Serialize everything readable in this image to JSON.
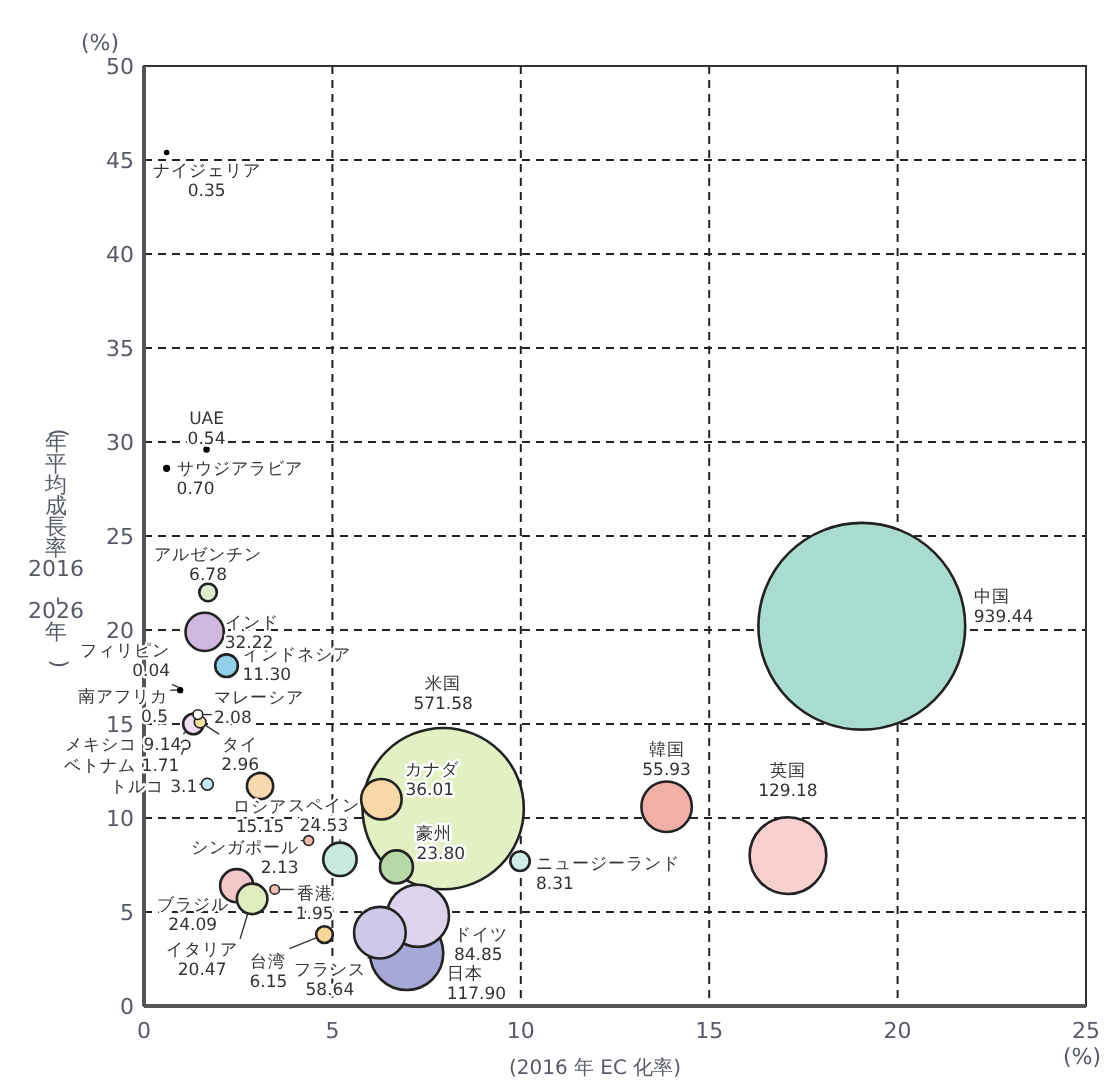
{
  "chart_data": {
    "type": "bubble",
    "xlabel": "(2016 年 EC 化率)",
    "ylabel": "(年平均成長率2016-2026年)",
    "annotations": [
      "(%)",
      "(%)"
    ],
    "xlim": [
      0,
      25
    ],
    "ylim": [
      0,
      50
    ],
    "xticks": [
      0,
      5,
      10,
      15,
      20,
      25
    ],
    "yticks": [
      0,
      5,
      10,
      15,
      20,
      25,
      30,
      35,
      40,
      45,
      50
    ],
    "grid": true,
    "series": [
      {
        "name": "中国",
        "color": "#a8dccf",
        "x": [
          19.05
        ],
        "values": [
          20.2
        ],
        "sizes": [
          939.44
        ],
        "value_labels": [
          "939.44"
        ]
      },
      {
        "name": "韓国",
        "color": "#f0b0a8",
        "x": [
          13.87
        ],
        "values": [
          10.6
        ],
        "sizes": [
          55.93
        ],
        "value_labels": [
          "55.93"
        ]
      },
      {
        "name": "英国",
        "color": "#f8d0d0",
        "x": [
          17.09
        ],
        "values": [
          8.0
        ],
        "sizes": [
          129.18
        ],
        "value_labels": [
          "129.18"
        ]
      },
      {
        "name": "米国",
        "color": "#e2f0c4",
        "x": [
          7.94
        ],
        "values": [
          10.5
        ],
        "sizes": [
          571.58
        ],
        "value_labels": [
          "571.58"
        ]
      },
      {
        "name": "カナダ",
        "color": "#f8d8a8",
        "x": [
          6.3
        ],
        "values": [
          11.0
        ],
        "sizes": [
          36.01
        ],
        "value_labels": [
          "36.01"
        ]
      },
      {
        "name": "スペイン",
        "color": "#c8e8e0",
        "x": [
          5.2
        ],
        "values": [
          7.8
        ],
        "sizes": [
          24.53
        ],
        "value_labels": [
          "24.53"
        ]
      },
      {
        "name": "豪州",
        "color": "#b8d8a8",
        "x": [
          6.7
        ],
        "values": [
          7.4
        ],
        "sizes": [
          23.8
        ],
        "value_labels": [
          "23.80"
        ]
      },
      {
        "name": "ニュージーランド",
        "color": "#d0ece8",
        "x": [
          9.98
        ],
        "values": [
          7.7
        ],
        "sizes": [
          8.31
        ],
        "value_labels": [
          "8.31"
        ]
      },
      {
        "name": "ドイツ",
        "color": "#dcd4ec",
        "x": [
          7.27
        ],
        "values": [
          4.8
        ],
        "sizes": [
          84.85
        ],
        "value_labels": [
          "84.85"
        ]
      },
      {
        "name": "フランス",
        "color": "#d0c8e8",
        "x": [
          6.26
        ],
        "values": [
          3.9
        ],
        "sizes": [
          58.64
        ],
        "value_labels": [
          "58.64"
        ]
      },
      {
        "name": "日本",
        "color": "#a8a8d8",
        "x": [
          6.97
        ],
        "values": [
          2.8
        ],
        "sizes": [
          117.9
        ],
        "value_labels": [
          "117.90"
        ]
      },
      {
        "name": "香港",
        "color": "#f0c0b0",
        "x": [
          3.47
        ],
        "values": [
          6.2
        ],
        "sizes": [
          1.95
        ],
        "value_labels": [
          "1.95"
        ]
      },
      {
        "name": "ブラジル",
        "color": "#f4c8c8",
        "x": [
          2.46
        ],
        "values": [
          6.4
        ],
        "sizes": [
          24.09
        ],
        "value_labels": [
          "24.09"
        ]
      },
      {
        "name": "イタリア",
        "color": "#e0ecc0",
        "x": [
          2.87
        ],
        "values": [
          5.7
        ],
        "sizes": [
          20.47
        ],
        "value_labels": [
          "20.47"
        ]
      },
      {
        "name": "台湾",
        "color": "#f8d898",
        "x": [
          4.79
        ],
        "values": [
          3.8
        ],
        "sizes": [
          6.15
        ],
        "value_labels": [
          "6.15"
        ]
      },
      {
        "name": "シンガポール",
        "color": "#f0b8a8",
        "x": [
          4.37
        ],
        "values": [
          8.8
        ],
        "sizes": [
          2.13
        ],
        "value_labels": [
          "2.13"
        ]
      },
      {
        "name": "ロシア",
        "color": "#f8d8b0",
        "x": [
          3.08
        ],
        "values": [
          11.7
        ],
        "sizes": [
          15.15
        ],
        "value_labels": [
          "15.15"
        ]
      },
      {
        "name": "トルコ",
        "color": "#c8e8f0",
        "x": [
          1.68
        ],
        "values": [
          11.8
        ],
        "sizes": [
          3.1
        ],
        "value_labels": [
          "3.1"
        ]
      },
      {
        "name": "メキシコ",
        "color": "#f0e0f0",
        "x": [
          1.31
        ],
        "values": [
          15.0
        ],
        "sizes": [
          9.14
        ],
        "value_labels": [
          "9.14"
        ]
      },
      {
        "name": "タイ",
        "color": "#f8e0a0",
        "x": [
          1.49
        ],
        "values": [
          15.1
        ],
        "sizes": [
          2.96
        ],
        "value_labels": [
          "2.96"
        ]
      },
      {
        "name": "ベトナム",
        "color": "#ffffff",
        "x": [
          1.1
        ],
        "values": [
          13.9
        ],
        "sizes": [
          1.71
        ],
        "value_labels": [
          "1.71"
        ]
      },
      {
        "name": "マレーシア",
        "color": "#ffffff",
        "x": [
          1.43
        ],
        "values": [
          15.5
        ],
        "sizes": [
          2.08
        ],
        "value_labels": [
          "2.08"
        ]
      },
      {
        "name": "インドネシア",
        "color": "#90d0e8",
        "x": [
          2.19
        ],
        "values": [
          18.1
        ],
        "sizes": [
          11.3
        ],
        "value_labels": [
          "11.30"
        ]
      },
      {
        "name": "インド",
        "color": "#d0b8e0",
        "x": [
          1.61
        ],
        "values": [
          19.9
        ],
        "sizes": [
          32.22
        ],
        "value_labels": [
          "32.22"
        ]
      },
      {
        "name": "アルゼンチン",
        "color": "#dceccc",
        "x": [
          1.7
        ],
        "values": [
          22.0
        ],
        "sizes": [
          6.78
        ],
        "value_labels": [
          "6.78"
        ]
      },
      {
        "name": "UAE",
        "color": "#000000",
        "x": [
          1.66
        ],
        "values": [
          29.6
        ],
        "sizes": [
          0.54
        ],
        "value_labels": [
          "0.54"
        ]
      },
      {
        "name": "サウジアラビア",
        "color": "#000000",
        "x": [
          0.6
        ],
        "values": [
          28.6
        ],
        "sizes": [
          0.7
        ],
        "value_labels": [
          "0.70"
        ]
      },
      {
        "name": "ナイジェリア",
        "color": "#000000",
        "x": [
          0.6
        ],
        "values": [
          45.4
        ],
        "sizes": [
          0.35
        ],
        "value_labels": [
          "0.35"
        ]
      },
      {
        "name": "フィリピン",
        "color": "#000000",
        "x": [
          0.96
        ],
        "values": [
          16.9
        ],
        "sizes": [
          0.04
        ],
        "value_labels": [
          "0.04"
        ]
      },
      {
        "name": "南アフリカ",
        "color": "#000000",
        "x": [
          0.96
        ],
        "values": [
          16.8
        ],
        "sizes": [
          0.5
        ],
        "value_labels": [
          "0.5"
        ]
      }
    ]
  }
}
